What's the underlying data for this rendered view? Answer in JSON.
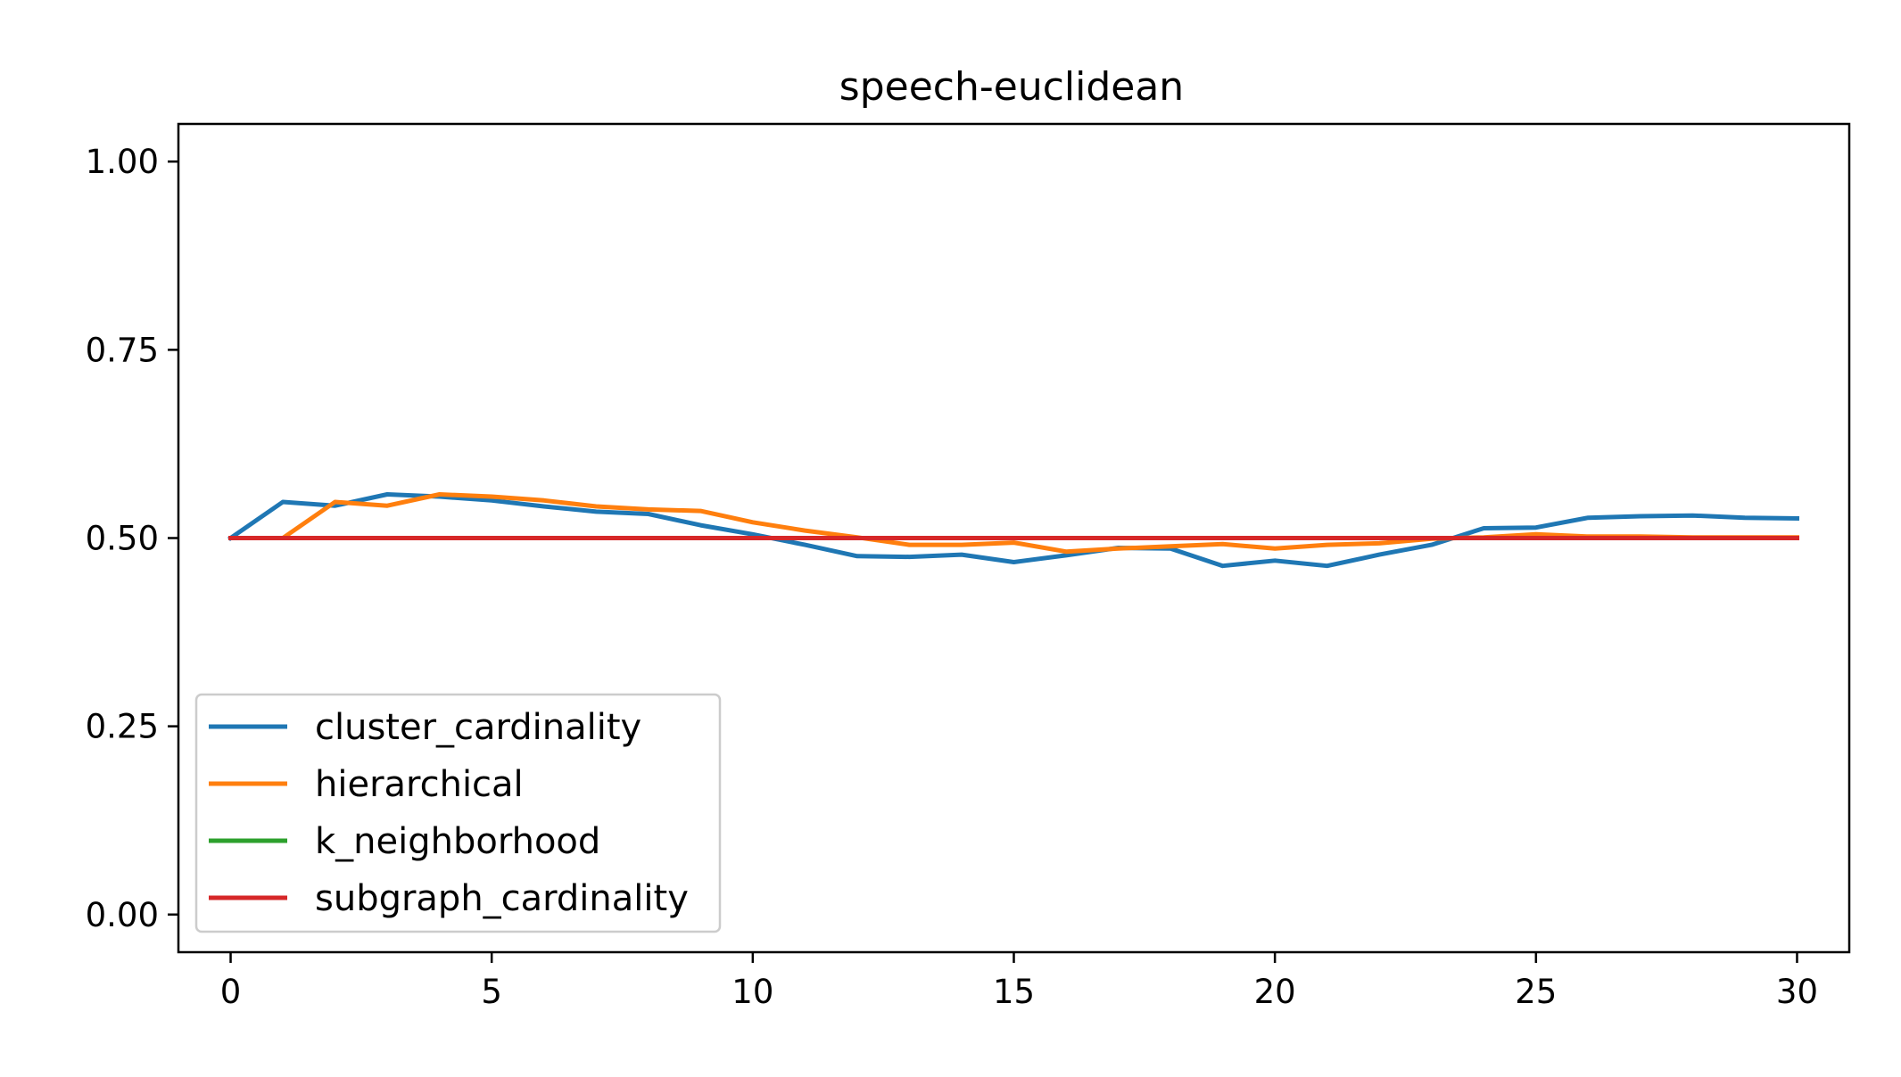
{
  "chart_data": {
    "type": "line",
    "title": "speech-euclidean",
    "xlabel": "",
    "ylabel": "",
    "xlim": [
      -1,
      31
    ],
    "ylim": [
      -0.05,
      1.05
    ],
    "x_ticks": [
      0,
      5,
      10,
      15,
      20,
      25,
      30
    ],
    "y_ticks": [
      0.0,
      0.25,
      0.5,
      0.75,
      1.0
    ],
    "x_tick_labels": [
      "0",
      "5",
      "10",
      "15",
      "20",
      "25",
      "30"
    ],
    "y_tick_labels": [
      "0.00",
      "0.25",
      "0.50",
      "0.75",
      "1.00"
    ],
    "grid": false,
    "legend_position": "lower-left",
    "x": [
      0,
      1,
      2,
      3,
      4,
      5,
      6,
      7,
      8,
      9,
      10,
      11,
      12,
      13,
      14,
      15,
      16,
      17,
      18,
      19,
      20,
      21,
      22,
      23,
      24,
      25,
      26,
      27,
      28,
      29,
      30
    ],
    "series": [
      {
        "name": "cluster_cardinality",
        "color": "#1f77b4",
        "values": [
          0.5,
          0.548,
          0.543,
          0.558,
          0.555,
          0.55,
          0.542,
          0.535,
          0.532,
          0.517,
          0.505,
          0.491,
          0.476,
          0.475,
          0.478,
          0.468,
          0.477,
          0.487,
          0.486,
          0.463,
          0.47,
          0.463,
          0.478,
          0.491,
          0.513,
          0.514,
          0.527,
          0.529,
          0.53,
          0.527,
          0.526
        ]
      },
      {
        "name": "hierarchical",
        "color": "#ff7f0e",
        "values": [
          0.5,
          0.5,
          0.548,
          0.543,
          0.558,
          0.555,
          0.55,
          0.542,
          0.538,
          0.536,
          0.521,
          0.51,
          0.501,
          0.491,
          0.491,
          0.494,
          0.482,
          0.486,
          0.489,
          0.492,
          0.486,
          0.491,
          0.493,
          0.499,
          0.501,
          0.505,
          0.502,
          0.502,
          0.501,
          0.501,
          0.501
        ]
      },
      {
        "name": "k_neighborhood",
        "color": "#2ca02c",
        "values": [
          0.5,
          0.5,
          0.5,
          0.5,
          0.5,
          0.5,
          0.5,
          0.5,
          0.5,
          0.5,
          0.5,
          0.5,
          0.5,
          0.5,
          0.5,
          0.5,
          0.5,
          0.5,
          0.5,
          0.5,
          0.5,
          0.5,
          0.5,
          0.5,
          0.5,
          0.5,
          0.5,
          0.5,
          0.5,
          0.5,
          0.5
        ]
      },
      {
        "name": "subgraph_cardinality",
        "color": "#d62728",
        "values": [
          0.5,
          0.5,
          0.5,
          0.5,
          0.5,
          0.5,
          0.5,
          0.5,
          0.5,
          0.5,
          0.5,
          0.5,
          0.5,
          0.5,
          0.5,
          0.5,
          0.5,
          0.5,
          0.5,
          0.5,
          0.5,
          0.5,
          0.5,
          0.5,
          0.5,
          0.5,
          0.5,
          0.5,
          0.5,
          0.5,
          0.5
        ]
      }
    ]
  }
}
